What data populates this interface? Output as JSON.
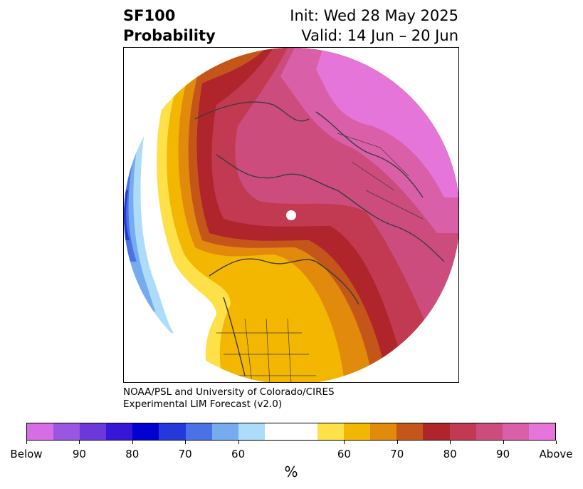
{
  "title": {
    "line1": "SF100",
    "line2": "Probability",
    "init": "Init: Wed 28 May 2025",
    "valid": "Valid: 14 Jun – 20 Jun"
  },
  "credit": {
    "line1": "NOAA/PSL and University of Colorado/CIRES",
    "line2": "Experimental LIM Forecast (v2.0)"
  },
  "colorbar": {
    "colors": [
      "#d56ee4",
      "#9a55e3",
      "#6b38dc",
      "#3816d8",
      "#0000cf",
      "#2538dc",
      "#4a72e6",
      "#76acef",
      "#addcfa",
      "#ffffff",
      "#ffffff",
      "#fee148",
      "#f4b701",
      "#e18a0c",
      "#c5561a",
      "#b0252b",
      "#c13a52",
      "#cc4d7d",
      "#da5fa9",
      "#e675d9"
    ],
    "labels": [
      "Below",
      "90",
      "80",
      "70",
      "60",
      "60",
      "70",
      "80",
      "90",
      "Above"
    ],
    "unit": "%"
  },
  "map": {
    "colors": {
      "pink_light": "#e675d9",
      "pink": "#da5fa9",
      "rose": "#cc4d7d",
      "crimson": "#c13a52",
      "red": "#b0252b",
      "rust": "#c5561a",
      "orange": "#e18a0c",
      "gold": "#f4b701",
      "yellow": "#fee148",
      "blue_light": "#addcfa",
      "blue_mid": "#76acef",
      "blue": "#4a72e6",
      "blue_dark": "#2538dc"
    }
  }
}
